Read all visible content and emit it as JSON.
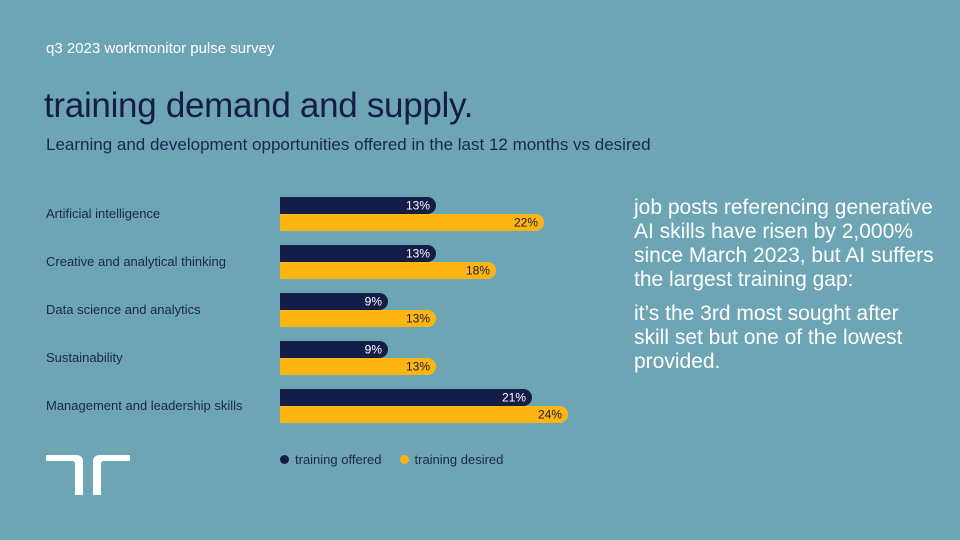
{
  "header": {
    "eyebrow": "q3 2023 workmonitor pulse survey",
    "title": "training demand and supply.",
    "subtitle": "Learning and development opportunities offered in the last 12 months vs desired"
  },
  "colors": {
    "background": "#6da5b5",
    "offered": "#141c48",
    "desired": "#ffb511",
    "callout_text": "#ffffff"
  },
  "chart_data": {
    "type": "bar",
    "orientation": "horizontal",
    "categories": [
      "Artificial intelligence",
      "Creative and analytical thinking",
      "Data science and analytics",
      "Sustainability",
      "Management and leadership skills"
    ],
    "series": [
      {
        "name": "training offered",
        "values": [
          13,
          13,
          9,
          9,
          21
        ],
        "labels": [
          "13%",
          "13%",
          "9%",
          "9%",
          "21%"
        ]
      },
      {
        "name": "training desired",
        "values": [
          22,
          18,
          13,
          13,
          24
        ],
        "labels": [
          "22%",
          "18%",
          "13%",
          "13%",
          "24%"
        ]
      }
    ],
    "value_unit": "%",
    "xlim": [
      0,
      24
    ],
    "legend": {
      "position": "bottom",
      "items": [
        "training offered",
        "training desired"
      ]
    }
  },
  "callout": {
    "paragraph1": "job posts referencing generative AI skills have risen by 2,000% since March 2023, but AI suffers the largest training gap:",
    "paragraph2": "it’s the 3rd most sought after skill set but one of the lowest provided."
  },
  "logo": {
    "name": "randstad-logo-icon"
  }
}
